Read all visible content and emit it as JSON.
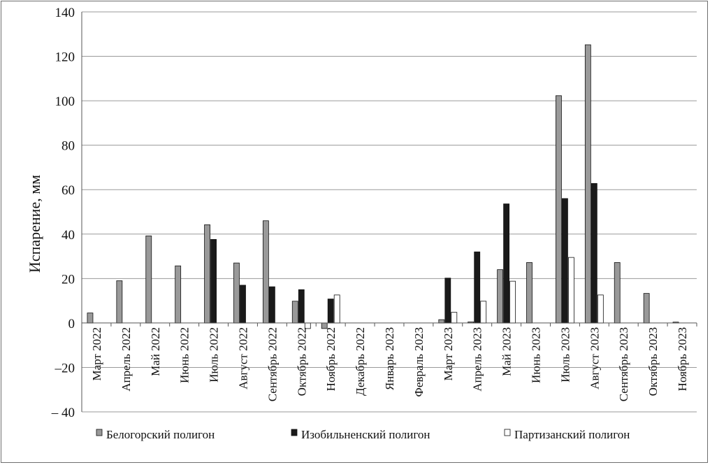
{
  "chart_data": {
    "type": "bar",
    "title": "",
    "xlabel": "",
    "ylabel": "Испарение, мм",
    "ylim": [
      -40,
      140
    ],
    "yticks": [
      140,
      120,
      100,
      80,
      60,
      40,
      20,
      0,
      -20,
      -40
    ],
    "ytick_labels": [
      "140",
      "120",
      "100",
      "80",
      "60",
      "40",
      "20",
      "0",
      "–20",
      "– 40"
    ],
    "grid": true,
    "legend_position": "bottom",
    "categories": [
      "Март 2022",
      "Апрель 2022",
      "Май 2022",
      "Июнь 2022",
      "Июль 2022",
      "Август 2022",
      "Сентябрь 2022",
      "Октябрь 2022",
      "Ноябрь 2022",
      "Декабрь 2022",
      "Январь 2023",
      "Февраль 2023",
      "Март 2023",
      "Апрель 2023",
      "Май 2023",
      "Июнь 2023",
      "Июль 2023",
      "Август 2023",
      "Сентябрь 2023",
      "Октябрь 2023",
      "Ноябрь 2023"
    ],
    "series": [
      {
        "name": "Белогорский полигон",
        "color": "#999999",
        "values": [
          4.5,
          19,
          39.2,
          25.7,
          44.2,
          27,
          46,
          9.8,
          -2.5,
          null,
          null,
          null,
          1.5,
          0.5,
          24,
          27.2,
          102.3,
          125.2,
          27.2,
          13.3,
          0.4
        ]
      },
      {
        "name": "Изобильненский полигон",
        "color": "#1a1a1a",
        "values": [
          null,
          null,
          null,
          null,
          37.6,
          17,
          16.3,
          15,
          10.8,
          null,
          null,
          null,
          20.2,
          32,
          53.6,
          null,
          56,
          62.8,
          null,
          null,
          null
        ]
      },
      {
        "name": "Партизанский полигон",
        "color": "#ffffff",
        "values": [
          null,
          null,
          null,
          null,
          null,
          null,
          null,
          -2.5,
          12.6,
          null,
          null,
          null,
          4.8,
          9.8,
          18.8,
          null,
          29.5,
          12.6,
          null,
          null,
          null
        ]
      }
    ]
  }
}
